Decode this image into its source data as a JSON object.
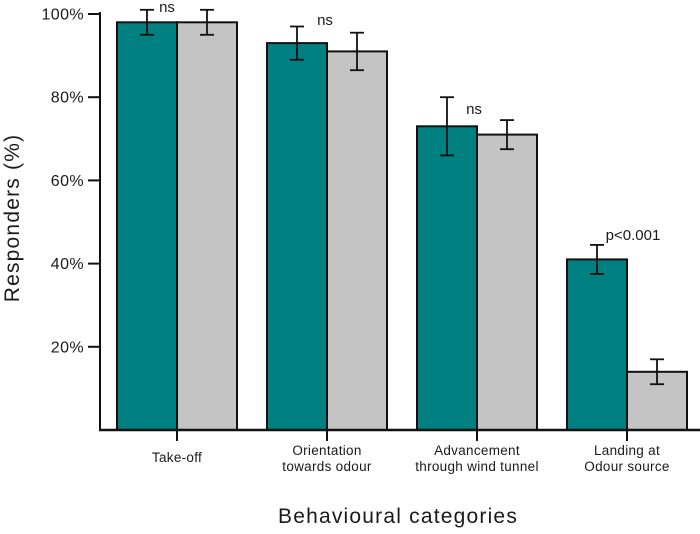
{
  "chart_data": {
    "type": "bar",
    "title": "",
    "xlabel": "Behavioural categories",
    "ylabel": "Responders (%)",
    "ylim": [
      0,
      100
    ],
    "grid": false,
    "legend": "none",
    "background": "#ffffff",
    "bar_outline": "#111111",
    "y_ticks": [
      {
        "value": 20,
        "label": "20%"
      },
      {
        "value": 40,
        "label": "40%"
      },
      {
        "value": 60,
        "label": "60%"
      },
      {
        "value": 80,
        "label": "80%"
      },
      {
        "value": 100,
        "label": "100%"
      }
    ],
    "categories": [
      "Take-off",
      "Orientation towards odour",
      "Advancement through wind tunnel",
      "Landing at Odour source"
    ],
    "category_lines": [
      [
        "Take-off"
      ],
      [
        "Orientation",
        "towards odour"
      ],
      [
        "Advancement",
        "through wind tunnel"
      ],
      [
        "Landing at",
        "Odour source"
      ]
    ],
    "series": [
      {
        "name": "teal",
        "color": "#008080",
        "values": [
          98,
          93,
          73,
          41
        ],
        "errors": [
          3,
          4,
          7,
          3.5
        ]
      },
      {
        "name": "grey",
        "color": "#c4c4c4",
        "values": [
          98,
          91,
          71,
          14
        ],
        "errors": [
          3,
          4.5,
          3.5,
          3
        ]
      }
    ],
    "annotations": [
      {
        "category": "Take-off",
        "text": "ns"
      },
      {
        "category": "Orientation towards odour",
        "text": "ns"
      },
      {
        "category": "Advancement through wind tunnel",
        "text": "ns"
      },
      {
        "category": "Landing at Odour source",
        "text": "p<0.001"
      }
    ]
  }
}
